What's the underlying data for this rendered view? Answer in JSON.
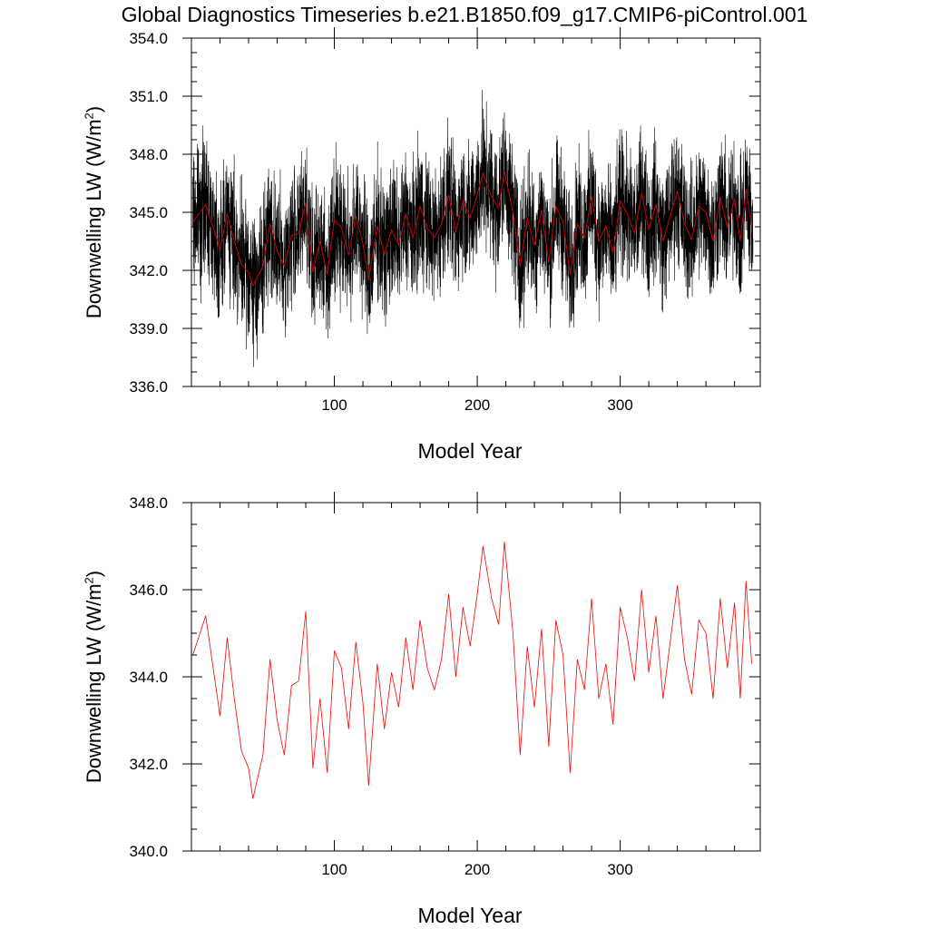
{
  "title": "Global Diagnostics Timeseries b.e21.B1850.f09_g17.CMIP6-piControl.001",
  "chart_data": [
    {
      "type": "line",
      "panel": "top",
      "xlabel": "Model Year",
      "ylabel_main": "Downwelling LW (W/m",
      "ylabel_sup": "2",
      "ylabel_close": ")",
      "xlim": [
        0,
        398
      ],
      "ylim": [
        336.0,
        354.0
      ],
      "xticks": [
        100,
        200,
        300
      ],
      "yticks": [
        336.0,
        339.0,
        342.0,
        345.0,
        348.0,
        351.0,
        354.0
      ],
      "ytick_labels": [
        "336.0",
        "339.0",
        "342.0",
        "345.0",
        "348.0",
        "351.0",
        "354.0"
      ],
      "series": [
        {
          "name": "monthly",
          "color": "#000000",
          "description": "monthly mean, oscillates roughly between 337 and 351.5"
        },
        {
          "name": "annual",
          "color": "#cc0000"
        }
      ]
    },
    {
      "type": "line",
      "panel": "bottom",
      "xlabel": "Model Year",
      "ylabel_main": "Downwelling LW (W/m",
      "ylabel_sup": "2",
      "ylabel_close": ")",
      "xlim": [
        0,
        398
      ],
      "ylim": [
        340.0,
        348.0
      ],
      "xticks": [
        100,
        200,
        300
      ],
      "yticks": [
        340.0,
        342.0,
        344.0,
        346.0,
        348.0
      ],
      "ytick_labels": [
        "340.0",
        "342.0",
        "344.0",
        "346.0",
        "348.0"
      ],
      "series": [
        {
          "name": "annual",
          "color": "#ff0000",
          "x": [
            1,
            10,
            20,
            25,
            30,
            35,
            40,
            43,
            50,
            55,
            60,
            65,
            70,
            75,
            80,
            85,
            90,
            95,
            100,
            105,
            110,
            115,
            120,
            124,
            130,
            135,
            140,
            145,
            150,
            155,
            160,
            165,
            170,
            175,
            180,
            185,
            190,
            195,
            200,
            204,
            210,
            215,
            219,
            225,
            230,
            235,
            240,
            245,
            250,
            255,
            260,
            265,
            270,
            275,
            280,
            285,
            290,
            295,
            300,
            305,
            310,
            315,
            320,
            325,
            330,
            335,
            340,
            345,
            350,
            355,
            360,
            365,
            370,
            375,
            380,
            384,
            388,
            392
          ],
          "values": [
            344.5,
            345.4,
            343.1,
            344.9,
            343.5,
            342.3,
            341.9,
            341.2,
            342.2,
            344.4,
            343.0,
            342.2,
            343.8,
            343.9,
            345.5,
            341.9,
            343.5,
            341.8,
            344.6,
            344.2,
            342.8,
            344.8,
            343.4,
            341.5,
            344.3,
            342.8,
            344.1,
            343.3,
            344.9,
            343.7,
            345.3,
            344.2,
            343.7,
            344.4,
            345.9,
            344.0,
            345.6,
            344.7,
            345.9,
            347.0,
            345.8,
            345.2,
            347.1,
            345.0,
            342.2,
            344.7,
            343.3,
            345.1,
            342.4,
            345.3,
            344.5,
            341.8,
            344.4,
            343.7,
            345.8,
            343.5,
            344.3,
            342.9,
            345.6,
            344.9,
            343.9,
            346.0,
            344.1,
            345.4,
            343.5,
            344.8,
            346.1,
            344.4,
            343.6,
            345.3,
            345.0,
            343.5,
            345.8,
            344.2,
            345.7,
            343.5,
            346.2,
            344.3
          ]
        }
      ]
    }
  ]
}
